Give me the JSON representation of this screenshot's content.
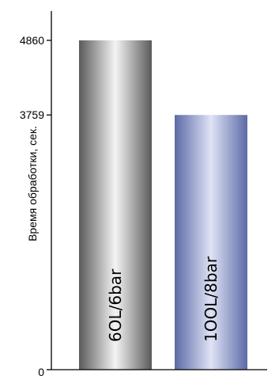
{
  "chart_data": {
    "type": "bar",
    "categories": [
      "60L/6bar",
      "100L/8bar"
    ],
    "values": [
      4860,
      3759
    ],
    "title": "",
    "xlabel": "",
    "ylabel": "Время обработки, сек.",
    "ylim": [
      0,
      4860
    ],
    "yticks": [
      0,
      3759,
      4860
    ],
    "ytick_labels": [
      "0",
      "3759",
      "4860"
    ],
    "bar_labels": [
      "6OL/6bar",
      "1OOL/8bar"
    ],
    "grid": false,
    "legend": "none",
    "colors": {
      "bar1_dark": "#5a5a5a",
      "bar1_light": "#f4f4f4",
      "bar2_dark": "#5c6aa6",
      "bar2_light": "#dfe3f5",
      "axis": "#000000"
    }
  }
}
